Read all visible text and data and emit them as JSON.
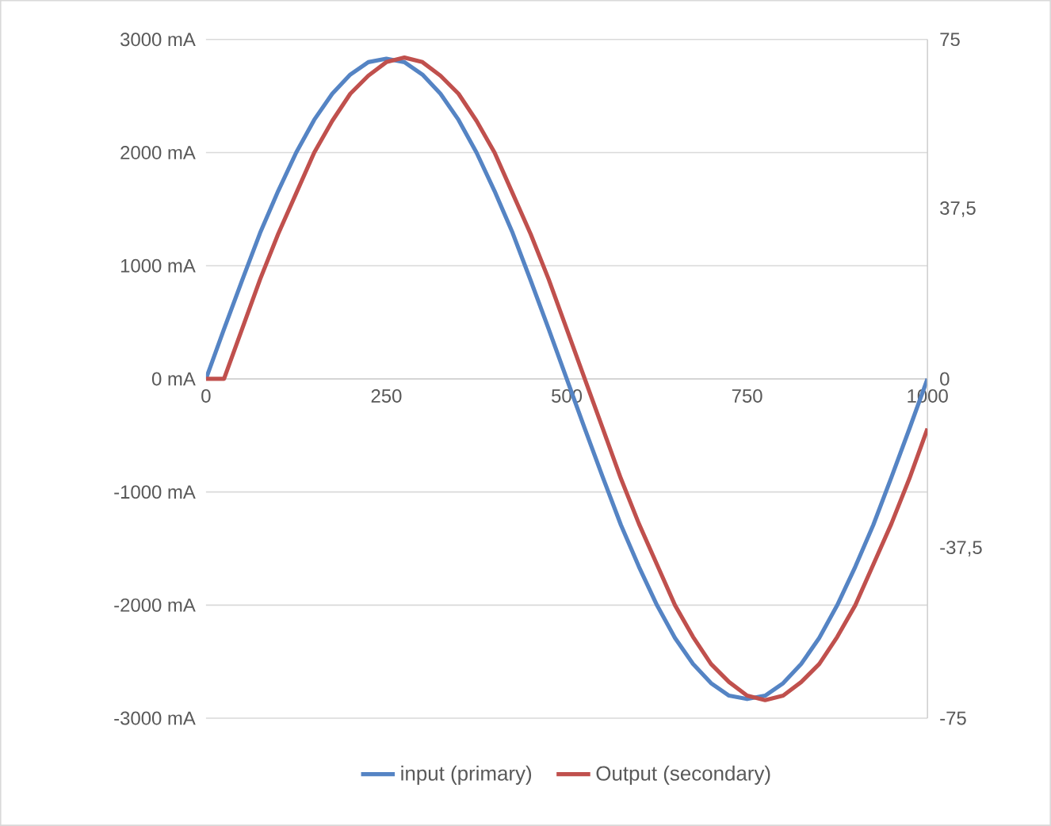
{
  "chart_data": {
    "type": "line",
    "x": [
      0,
      25,
      50,
      75,
      100,
      125,
      150,
      175,
      200,
      225,
      250,
      275,
      300,
      325,
      350,
      375,
      400,
      425,
      450,
      475,
      500,
      525,
      550,
      575,
      600,
      625,
      650,
      675,
      700,
      725,
      750,
      775,
      800,
      825,
      850,
      875,
      900,
      925,
      950,
      975,
      1000
    ],
    "series": [
      {
        "name": "input (primary)",
        "color": "#5584c4",
        "values": [
          0,
          440,
          870,
          1290,
          1660,
          2000,
          2290,
          2520,
          2690,
          2800,
          2830,
          2800,
          2690,
          2520,
          2290,
          2000,
          1660,
          1290,
          870,
          440,
          0,
          -440,
          -870,
          -1290,
          -1660,
          -2000,
          -2290,
          -2520,
          -2690,
          -2800,
          -2830,
          -2800,
          -2690,
          -2520,
          -2290,
          -2000,
          -1660,
          -1290,
          -870,
          -440,
          0
        ]
      },
      {
        "name": "Output (secondary)",
        "color": "#c0504d",
        "axis": "y2",
        "values": [
          0,
          0,
          11,
          22,
          32,
          41,
          50,
          57,
          63,
          67,
          70,
          71,
          70,
          67,
          63,
          57,
          50,
          41,
          32,
          22,
          11,
          0,
          -11,
          -22,
          -32,
          -41,
          -50,
          -57,
          -63,
          -67,
          -70,
          -71,
          -70,
          -67,
          -63,
          -57,
          -50,
          -41,
          -32,
          -22,
          -11
        ]
      }
    ],
    "xlim": [
      0,
      1000
    ],
    "xticks": [
      0,
      250,
      500,
      750,
      1000
    ],
    "ylim": [
      -3000,
      3000
    ],
    "yticks": [
      {
        "value": -3000,
        "label": "-3000 mA"
      },
      {
        "value": -2000,
        "label": "-2000 mA"
      },
      {
        "value": -1000,
        "label": "-1000 mA"
      },
      {
        "value": 0,
        "label": "0 mA"
      },
      {
        "value": 1000,
        "label": "1000 mA"
      },
      {
        "value": 2000,
        "label": "2000 mA"
      },
      {
        "value": 3000,
        "label": "3000 mA"
      }
    ],
    "y2lim": [
      -75,
      75
    ],
    "y2ticks": [
      -75,
      {
        "value": -37.5,
        "label": "-37,5"
      },
      0,
      {
        "value": 37.5,
        "label": "37,5"
      },
      75
    ],
    "grid": "y",
    "legend": "bottom",
    "line_style": "solid"
  }
}
